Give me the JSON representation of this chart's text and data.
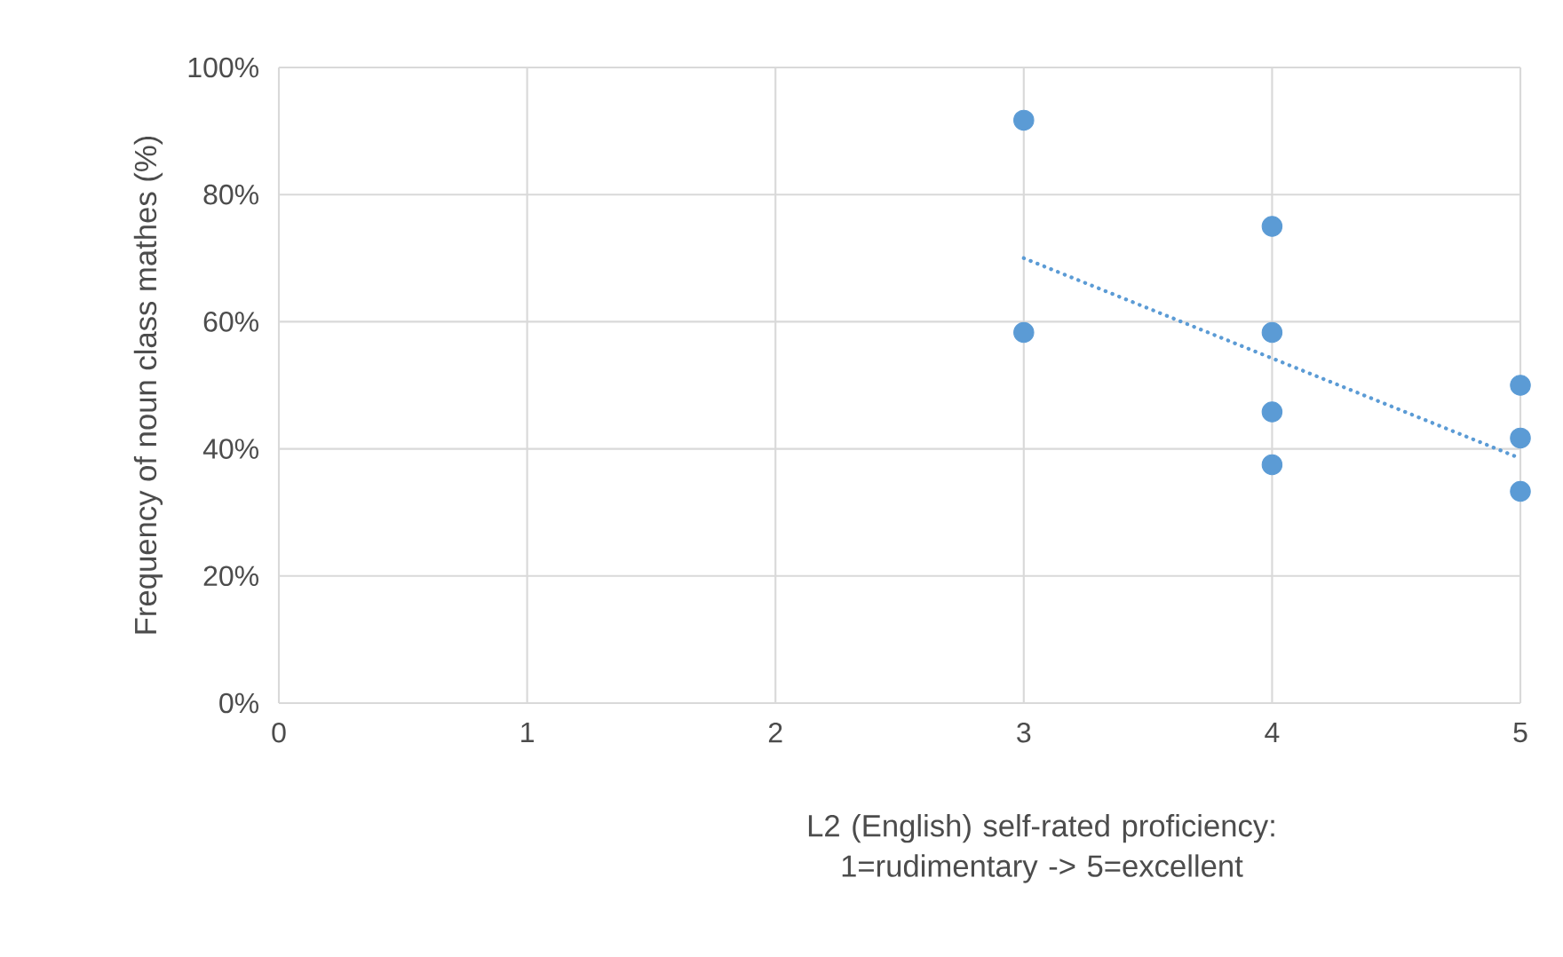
{
  "chart_data": {
    "type": "scatter",
    "xlabel": "L2 (English) self-rated proficiency: 1=rudimentary -> 5=excellent",
    "ylabel": "Frequency of noun class mathes (%)",
    "xlim": [
      0,
      5
    ],
    "xticks": [
      0,
      1,
      2,
      3,
      4,
      5
    ],
    "ylim": [
      0,
      100
    ],
    "yticks": [
      {
        "value": 0,
        "label": "0%"
      },
      {
        "value": 20,
        "label": "20%"
      },
      {
        "value": 40,
        "label": "40%"
      },
      {
        "value": 60,
        "label": "60%"
      },
      {
        "value": 80,
        "label": "80%"
      },
      {
        "value": 100,
        "label": "100%"
      }
    ],
    "grid": true,
    "series": [
      {
        "color": "#5b9bd5",
        "marker": "circle",
        "x": [
          3,
          3,
          4,
          4,
          4,
          4,
          5,
          5,
          5
        ],
        "values": [
          91.7,
          58.3,
          75,
          58.3,
          45.8,
          37.5,
          50,
          41.7,
          33.3
        ]
      },
      {
        "type": "line",
        "color": "#5b9bd5",
        "marker": "none",
        "line_style": "dotted",
        "x": [
          3,
          5
        ],
        "values": [
          70,
          38.5
        ]
      }
    ]
  }
}
